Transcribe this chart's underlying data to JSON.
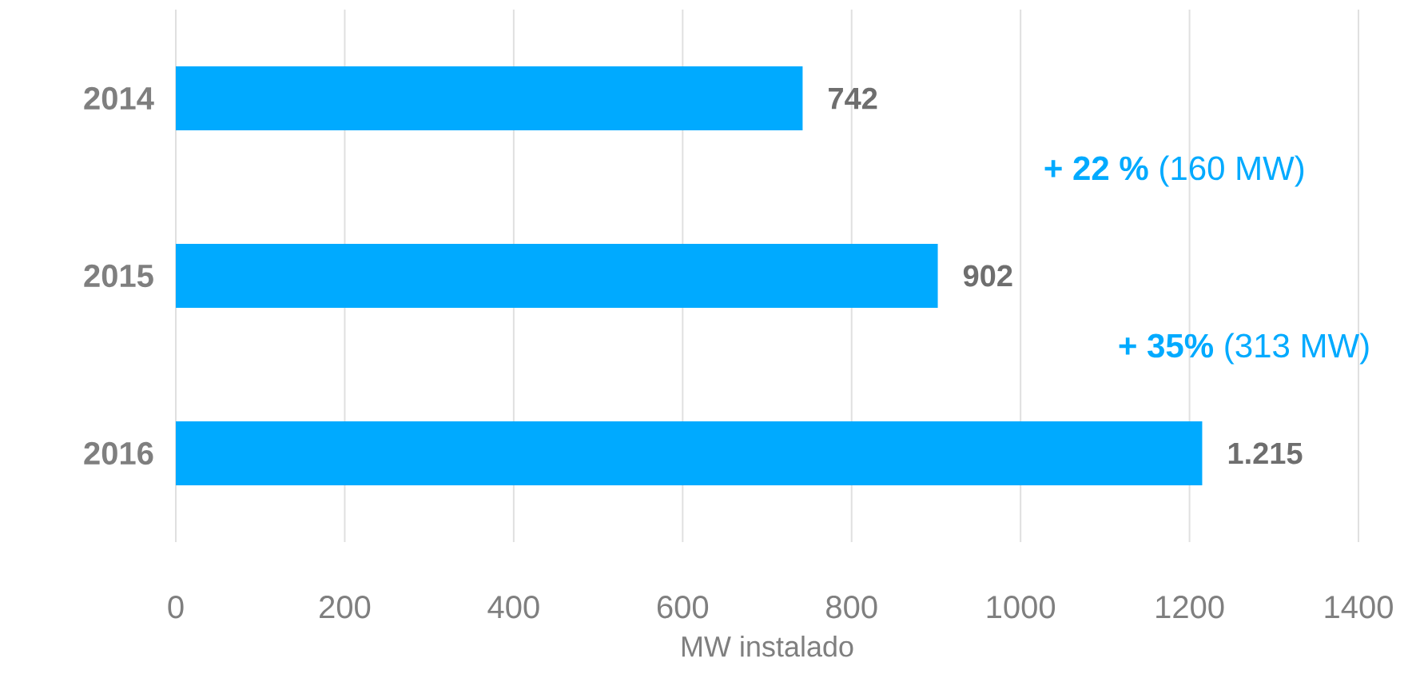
{
  "chart_data": {
    "type": "bar",
    "orientation": "horizontal",
    "xlabel": "MW instalado",
    "categories": [
      "2014",
      "2015",
      "2016"
    ],
    "values": [
      742,
      902,
      1215
    ],
    "value_labels": [
      "742",
      "902",
      "1.215"
    ],
    "color": "#00aaff",
    "xlim": [
      0,
      1400
    ],
    "xticks": [
      0,
      200,
      400,
      600,
      800,
      1000,
      1200,
      1400
    ],
    "grid": "x",
    "annotations": [
      "**+ 22 %** (160 MW)",
      "**+ 35%** (313 MW)"
    ]
  }
}
